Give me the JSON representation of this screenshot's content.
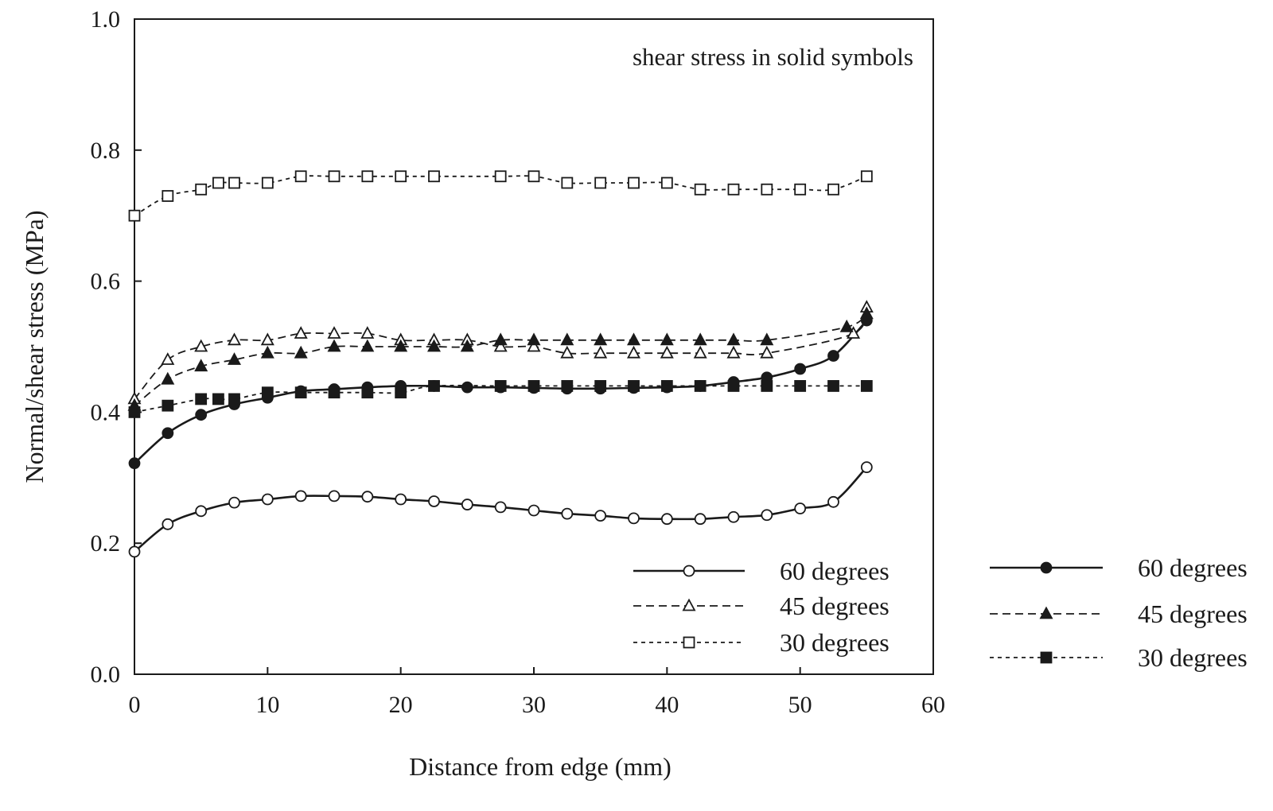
{
  "chart_data": {
    "type": "line",
    "title": "",
    "xlabel": "Distance from edge (mm)",
    "ylabel": "Normal/shear stress (MPa)",
    "xlim": [
      0,
      60
    ],
    "ylim": [
      0.0,
      1.0
    ],
    "x_ticks": [
      "0",
      "10",
      "20",
      "30",
      "40",
      "50",
      "60"
    ],
    "y_ticks": [
      "0.0",
      "0.2",
      "0.4",
      "0.6",
      "0.8",
      "1.0"
    ],
    "grid": false,
    "annotation": "shear stress in solid symbols",
    "series": [
      {
        "name": "60 degrees",
        "marker": "circle-open",
        "dash": "solid",
        "x": [
          0,
          2.5,
          5,
          7.5,
          10,
          12.5,
          15,
          17.5,
          20,
          22.5,
          25,
          27.5,
          30,
          32.5,
          35,
          37.5,
          40,
          42.5,
          45,
          47.5,
          50,
          52.5,
          55
        ],
        "y": [
          0.187,
          0.229,
          0.249,
          0.262,
          0.267,
          0.272,
          0.272,
          0.271,
          0.267,
          0.264,
          0.259,
          0.255,
          0.25,
          0.245,
          0.242,
          0.238,
          0.237,
          0.237,
          0.24,
          0.243,
          0.253,
          0.263,
          0.316
        ]
      },
      {
        "name": "45 degrees",
        "marker": "triangle-open",
        "dash": "dashed",
        "x": [
          0,
          2.5,
          5,
          7.5,
          10,
          12.5,
          15,
          17.5,
          20,
          22.5,
          25,
          27.5,
          30,
          32.5,
          35,
          37.5,
          40,
          42.5,
          45,
          47.5,
          54,
          55
        ],
        "y": [
          0.42,
          0.48,
          0.5,
          0.51,
          0.51,
          0.52,
          0.52,
          0.52,
          0.51,
          0.51,
          0.51,
          0.5,
          0.5,
          0.49,
          0.49,
          0.49,
          0.49,
          0.49,
          0.49,
          0.49,
          0.52,
          0.56
        ]
      },
      {
        "name": "30 degrees",
        "marker": "square-open",
        "dash": "dotted",
        "x": [
          0,
          2.5,
          5,
          6.3,
          7.5,
          10,
          12.5,
          15,
          17.5,
          20,
          22.5,
          27.5,
          30,
          32.5,
          35,
          37.5,
          40,
          42.5,
          45,
          47.5,
          50,
          52.5,
          55
        ],
        "y": [
          0.7,
          0.73,
          0.74,
          0.75,
          0.75,
          0.75,
          0.76,
          0.76,
          0.76,
          0.76,
          0.76,
          0.76,
          0.76,
          0.75,
          0.75,
          0.75,
          0.75,
          0.74,
          0.74,
          0.74,
          0.74,
          0.74,
          0.76
        ]
      },
      {
        "name": "60 degrees",
        "marker": "circle-filled",
        "dash": "solid",
        "x": [
          0,
          2.5,
          5,
          7.5,
          10,
          12.5,
          15,
          17.5,
          20,
          22.5,
          25,
          27.5,
          30,
          32.5,
          35,
          37.5,
          40,
          42.5,
          45,
          47.5,
          50,
          52.5,
          55
        ],
        "y": [
          0.322,
          0.368,
          0.396,
          0.412,
          0.422,
          0.432,
          0.435,
          0.438,
          0.44,
          0.44,
          0.438,
          0.438,
          0.437,
          0.436,
          0.436,
          0.437,
          0.438,
          0.44,
          0.446,
          0.453,
          0.466,
          0.486,
          0.54
        ]
      },
      {
        "name": "45 degrees",
        "marker": "triangle-filled",
        "dash": "dashed",
        "x": [
          0,
          2.5,
          5,
          7.5,
          10,
          12.5,
          15,
          17.5,
          20,
          22.5,
          25,
          27.5,
          30,
          32.5,
          35,
          37.5,
          40,
          42.5,
          45,
          47.5,
          53.5,
          55
        ],
        "y": [
          0.41,
          0.45,
          0.47,
          0.48,
          0.49,
          0.49,
          0.5,
          0.5,
          0.5,
          0.5,
          0.5,
          0.51,
          0.51,
          0.51,
          0.51,
          0.51,
          0.51,
          0.51,
          0.51,
          0.51,
          0.53,
          0.55
        ]
      },
      {
        "name": "30 degrees",
        "marker": "square-filled",
        "dash": "dotted",
        "x": [
          0,
          2.5,
          5,
          6.3,
          7.5,
          10,
          12.5,
          15,
          17.5,
          20,
          22.5,
          27.5,
          30,
          32.5,
          35,
          37.5,
          40,
          42.5,
          45,
          47.5,
          50,
          52.5,
          55
        ],
        "y": [
          0.4,
          0.41,
          0.42,
          0.42,
          0.42,
          0.43,
          0.43,
          0.43,
          0.43,
          0.43,
          0.44,
          0.44,
          0.44,
          0.44,
          0.44,
          0.44,
          0.44,
          0.44,
          0.44,
          0.44,
          0.44,
          0.44,
          0.44
        ]
      }
    ],
    "legends": [
      {
        "placement": "inside-bottom-right",
        "entries": [
          0,
          1,
          2
        ]
      },
      {
        "placement": "outside-right",
        "entries": [
          3,
          4,
          5
        ]
      }
    ]
  }
}
